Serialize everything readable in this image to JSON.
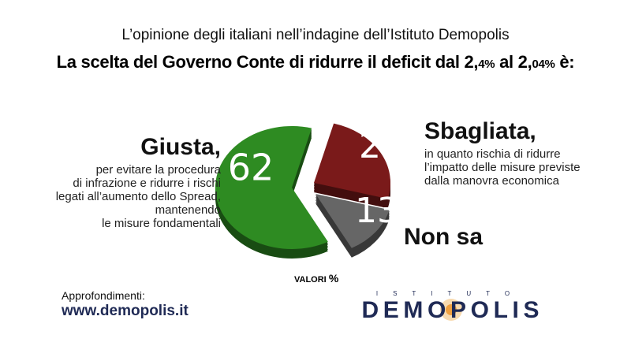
{
  "subtitle": "L’opinione degli italiani nell’indagine dell’Istituto Demopolis",
  "title": {
    "pre": "La scelta del Governo Conte di ridurre il deficit dal 2,",
    "v1": "4%",
    "mid": " al 2,",
    "v2": "04%",
    "post": " è:"
  },
  "chart_data": {
    "type": "pie",
    "title": "La scelta del Governo Conte di ridurre il deficit dal 2,4% al 2,04% è:",
    "unit": "VALORI %",
    "slices": [
      {
        "label": "Giusta,",
        "value": 62,
        "color": "#2e8b22",
        "description": [
          "per evitare la procedura",
          "di infrazione e ridurre i rischi",
          "legati all’aumento dello Spread,",
          "mantenendo",
          "le misure fondamentali"
        ]
      },
      {
        "label": "Sbagliata,",
        "value": 25,
        "color": "#7a1a1a",
        "description": [
          "in quanto rischia di ridurre",
          "l’impatto delle misure previste",
          "dalla manovra economica"
        ]
      },
      {
        "label": "Non sa",
        "value": 13,
        "color": "#666666",
        "description": []
      }
    ]
  },
  "valori": {
    "label": "VALORI",
    "pct": "%"
  },
  "footer": {
    "approfondimenti": "Approfondimenti:",
    "site": "www.demopolis.it"
  },
  "logo": {
    "top": "ISTITUTO",
    "name": "DEMOPOLIS"
  }
}
